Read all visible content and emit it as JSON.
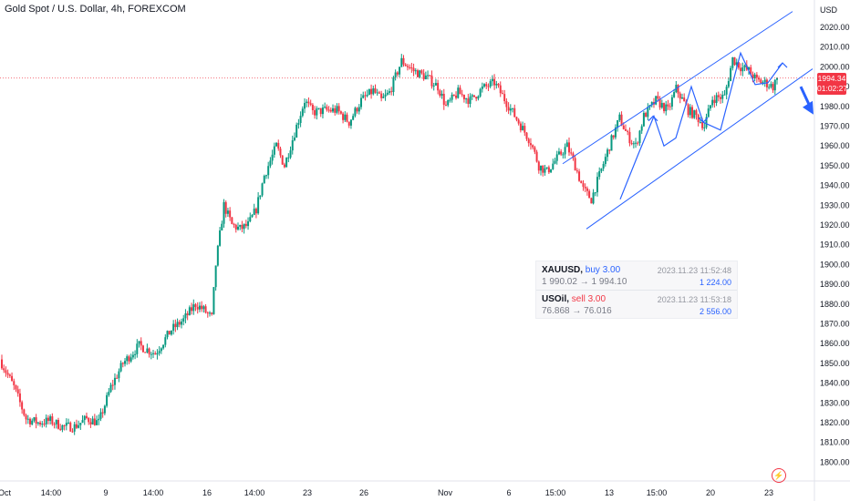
{
  "window": {
    "title": "Gold Spot / U.S. Dollar, 4h, FOREXCOM"
  },
  "axis": {
    "currency": "USD",
    "live_price": "1994.34",
    "countdown": "01:02:27"
  },
  "trades": [
    {
      "symbol": "XAUUSD,",
      "side": "buy 3.00",
      "time": "2023.11.23 11:52:48",
      "prices": "1 990.02 → 1 994.10",
      "profit": "1 224.00"
    },
    {
      "symbol": "USOil,",
      "side": "sell 3.00",
      "time": "2023.11.23 11:53:18",
      "prices": "76.868 → 76.016",
      "profit": "2 556.00"
    }
  ],
  "icons": {
    "lightning": "lightning-icon"
  },
  "chart_data": {
    "type": "candlestick",
    "title": "Gold Spot / U.S. Dollar, 4h, FOREXCOM",
    "ylim": [
      1795,
      2026
    ],
    "yticks": [
      1800,
      1810,
      1820,
      1830,
      1840,
      1850,
      1860,
      1870,
      1880,
      1890,
      1900,
      1910,
      1920,
      1930,
      1940,
      1950,
      1960,
      1970,
      1980,
      1990,
      2000,
      2010,
      2020
    ],
    "xticks": [
      "Oct",
      "14:00",
      "9",
      "14:00",
      "16",
      "14:00",
      "23",
      "26",
      "Nov",
      "6",
      "15:00",
      "13",
      "15:00",
      "20",
      "23"
    ],
    "last_price": 1994.34,
    "up_color": "#089981",
    "down_color": "#f23645",
    "anchors": [
      [
        0,
        1850
      ],
      [
        6,
        1838
      ],
      [
        12,
        1822
      ],
      [
        18,
        1820
      ],
      [
        24,
        1821
      ],
      [
        30,
        1818
      ],
      [
        36,
        1818
      ],
      [
        42,
        1822
      ],
      [
        48,
        1820
      ],
      [
        54,
        1838
      ],
      [
        60,
        1850
      ],
      [
        68,
        1859
      ],
      [
        76,
        1855
      ],
      [
        84,
        1867
      ],
      [
        90,
        1872
      ],
      [
        96,
        1880
      ],
      [
        100,
        1877
      ],
      [
        104,
        1873
      ],
      [
        106,
        1900
      ],
      [
        110,
        1930
      ],
      [
        114,
        1920
      ],
      [
        118,
        1918
      ],
      [
        122,
        1920
      ],
      [
        126,
        1928
      ],
      [
        130,
        1945
      ],
      [
        136,
        1960
      ],
      [
        140,
        1950
      ],
      [
        146,
        1970
      ],
      [
        150,
        1983
      ],
      [
        154,
        1977
      ],
      [
        160,
        1978
      ],
      [
        166,
        1978
      ],
      [
        172,
        1972
      ],
      [
        178,
        1983
      ],
      [
        184,
        1988
      ],
      [
        188,
        1983
      ],
      [
        192,
        1987
      ],
      [
        198,
        2003
      ],
      [
        204,
        1998
      ],
      [
        210,
        1995
      ],
      [
        216,
        1990
      ],
      [
        220,
        1980
      ],
      [
        226,
        1987
      ],
      [
        232,
        1983
      ],
      [
        238,
        1989
      ],
      [
        244,
        1992
      ],
      [
        250,
        1982
      ],
      [
        256,
        1972
      ],
      [
        262,
        1962
      ],
      [
        266,
        1950
      ],
      [
        270,
        1947
      ],
      [
        276,
        1955
      ],
      [
        280,
        1960
      ],
      [
        284,
        1950
      ],
      [
        288,
        1938
      ],
      [
        292,
        1933
      ],
      [
        296,
        1945
      ],
      [
        302,
        1963
      ],
      [
        306,
        1974
      ],
      [
        310,
        1965
      ],
      [
        314,
        1960
      ],
      [
        318,
        1975
      ],
      [
        324,
        1983
      ],
      [
        330,
        1978
      ],
      [
        334,
        1989
      ],
      [
        340,
        1978
      ],
      [
        344,
        1975
      ],
      [
        348,
        1970
      ],
      [
        352,
        1984
      ],
      [
        358,
        1985
      ],
      [
        362,
        2004
      ],
      [
        366,
        2000
      ],
      [
        370,
        1998
      ],
      [
        374,
        1993
      ],
      [
        378,
        1992
      ],
      [
        382,
        1990
      ],
      [
        384,
        1994.34
      ]
    ],
    "channel": {
      "upper": [
        [
          "Nov 8",
          1951
        ],
        [
          "Nov 24",
          2028
        ]
      ],
      "lower": [
        [
          "Nov 9",
          1918
        ],
        [
          "Nov 24",
          1999
        ]
      ]
    }
  }
}
